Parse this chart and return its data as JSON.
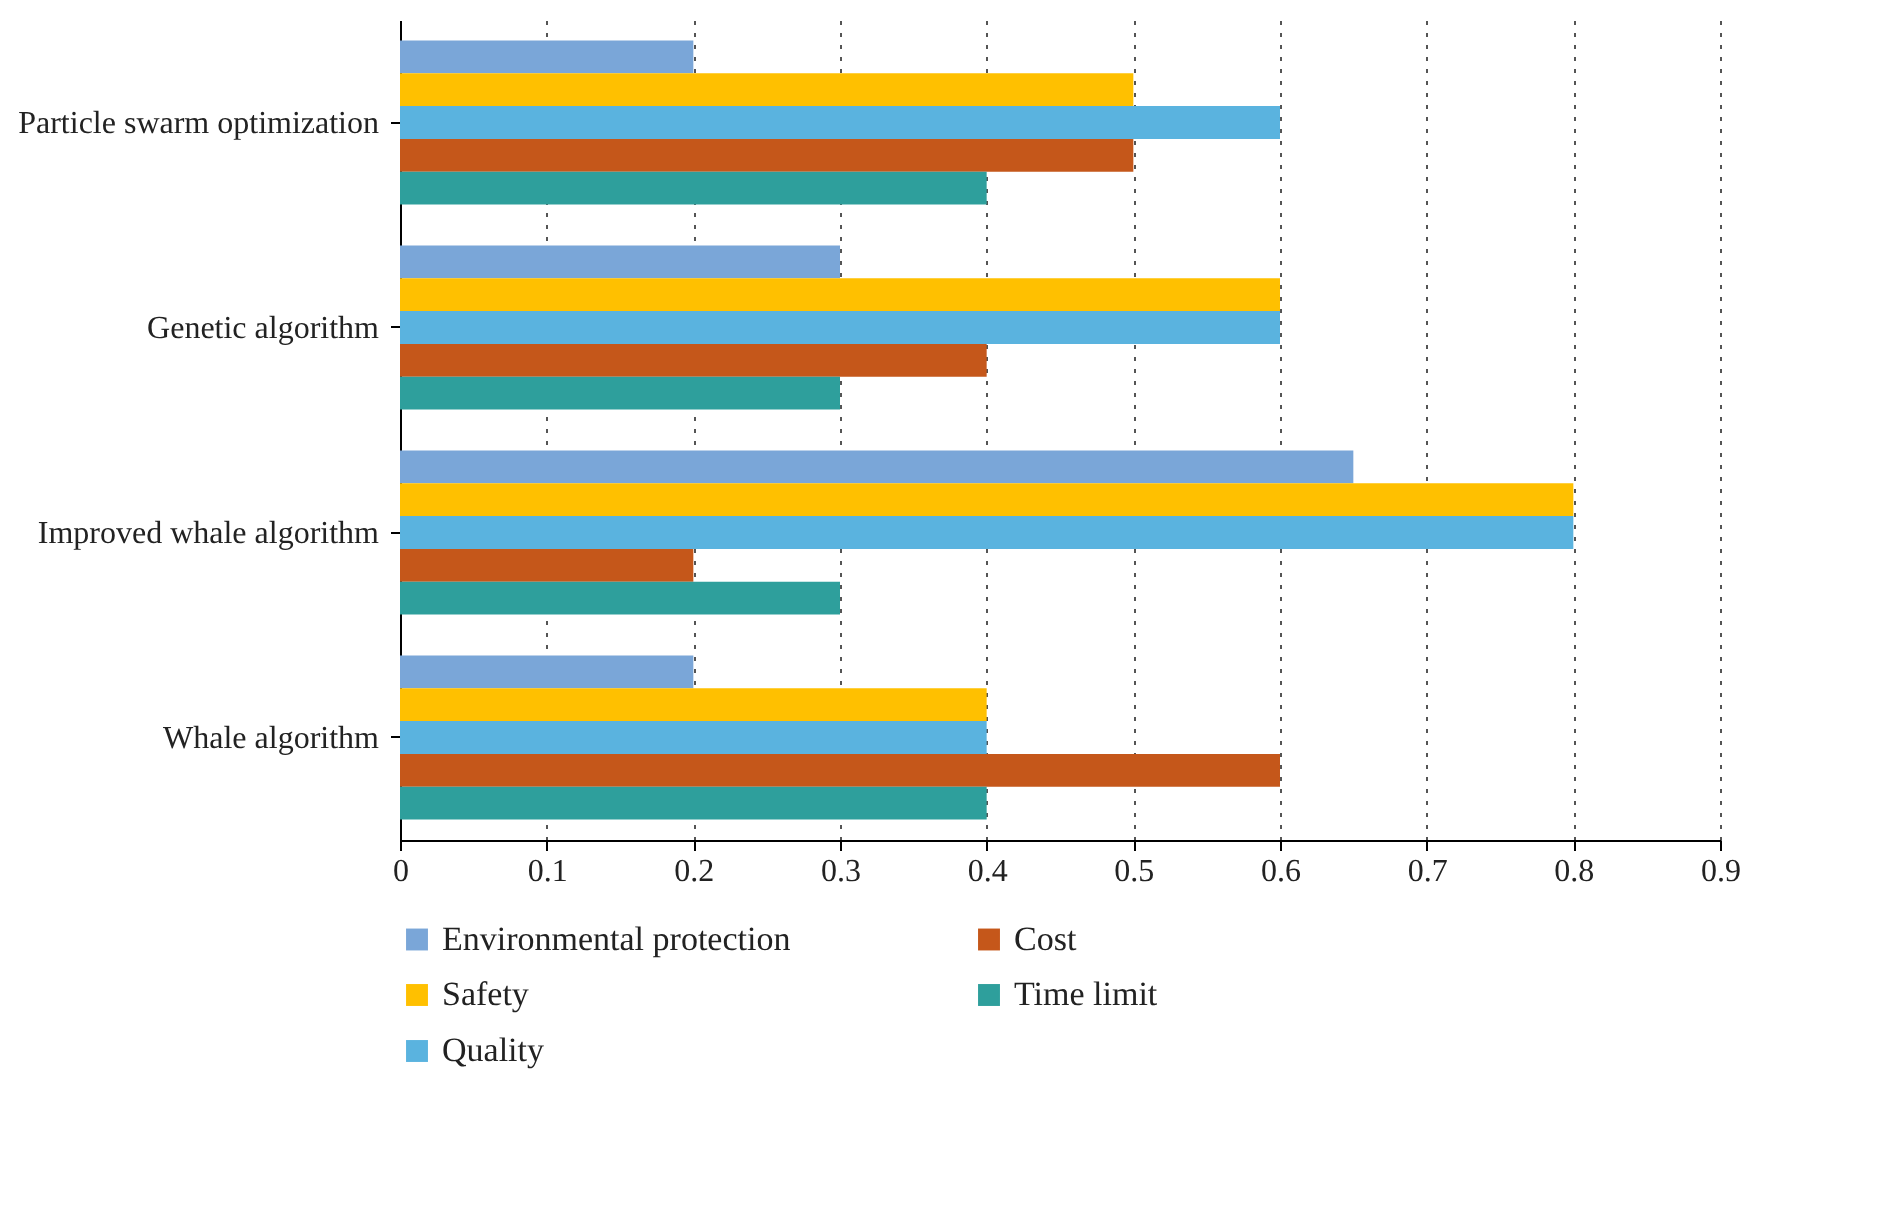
{
  "chart_data": {
    "type": "bar",
    "orientation": "horizontal",
    "categories": [
      "Particle swarm optimization",
      "Genetic algorithm",
      "Improved whale algorithm",
      "Whale algorithm"
    ],
    "series": [
      {
        "name": "Environmental protection",
        "color": "#7aa6d8",
        "values": [
          0.2,
          0.3,
          0.65,
          0.2
        ]
      },
      {
        "name": "Safety",
        "color": "#ffc000",
        "values": [
          0.5,
          0.6,
          0.8,
          0.4
        ]
      },
      {
        "name": "Quality",
        "color": "#5ab3df",
        "values": [
          0.6,
          0.6,
          0.8,
          0.4
        ]
      },
      {
        "name": "Cost",
        "color": "#c5571a",
        "values": [
          0.5,
          0.4,
          0.2,
          0.6
        ]
      },
      {
        "name": "Time limit",
        "color": "#2e9f9c",
        "values": [
          0.4,
          0.3,
          0.3,
          0.4
        ]
      }
    ],
    "xlim": [
      0,
      0.9
    ],
    "xticks": [
      0,
      0.1,
      0.2,
      0.3,
      0.4,
      0.5,
      0.6,
      0.7,
      0.8,
      0.9
    ],
    "grid": "x",
    "legend": "bottom"
  }
}
